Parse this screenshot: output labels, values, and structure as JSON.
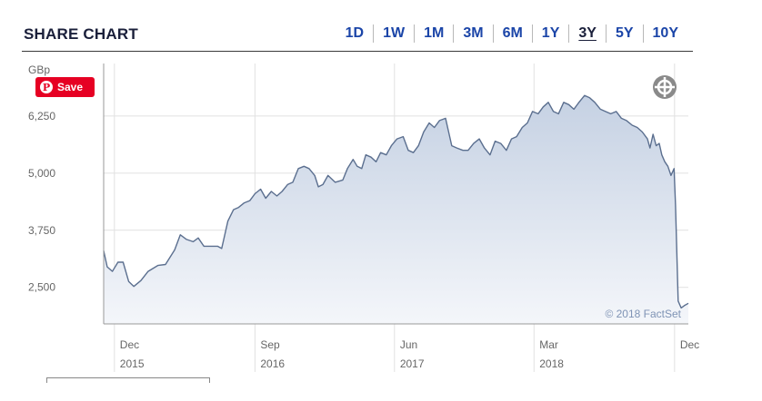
{
  "header": {
    "title": "SHARE CHART",
    "ranges": [
      "1D",
      "1W",
      "1M",
      "3M",
      "6M",
      "1Y",
      "3Y",
      "5Y",
      "10Y"
    ],
    "active_range": "3Y"
  },
  "save_button": {
    "label": "Save",
    "icon": "pinterest-icon"
  },
  "crosshair_icon": "crosshair-icon",
  "colors": {
    "line": "#5b6f8f",
    "fill_top": "#c5d1e3",
    "fill_bottom": "#f4f6fa",
    "grid": "#e1e1e1",
    "axis_text": "#666666",
    "accent": "#1b45a8",
    "pinterest": "#e60023"
  },
  "chart_data": {
    "type": "area",
    "ylabel": "GBp",
    "yticks": [
      2500,
      3750,
      5000,
      6250
    ],
    "ytick_labels": [
      "2,500",
      "3,750",
      "5,000",
      "6,250"
    ],
    "ylim": [
      1700,
      7400
    ],
    "xlim": [
      "2015-11-10",
      "2018-12-28"
    ],
    "xticks": [
      {
        "date": "2015-12-01",
        "month": "Dec",
        "year": "2015"
      },
      {
        "date": "2016-09-01",
        "month": "Sep",
        "year": "2016"
      },
      {
        "date": "2017-06-01",
        "month": "Jun",
        "year": "2017"
      },
      {
        "date": "2018-03-01",
        "month": "Mar",
        "year": "2018"
      },
      {
        "date": "2018-12-01",
        "month": "Dec",
        "year": ""
      }
    ],
    "grid": true,
    "credit": "© 2018 FactSet",
    "series": [
      {
        "points": [
          [
            "2015-11-10",
            3300
          ],
          [
            "2015-11-17",
            2950
          ],
          [
            "2015-11-27",
            2850
          ],
          [
            "2015-12-08",
            3050
          ],
          [
            "2015-12-18",
            3050
          ],
          [
            "2015-12-29",
            2630
          ],
          [
            "2016-01-08",
            2520
          ],
          [
            "2016-01-22",
            2650
          ],
          [
            "2016-02-05",
            2850
          ],
          [
            "2016-02-24",
            2980
          ],
          [
            "2016-03-10",
            3000
          ],
          [
            "2016-03-28",
            3320
          ],
          [
            "2016-04-08",
            3650
          ],
          [
            "2016-04-20",
            3550
          ],
          [
            "2016-05-03",
            3500
          ],
          [
            "2016-05-13",
            3580
          ],
          [
            "2016-05-24",
            3400
          ],
          [
            "2016-06-20",
            3400
          ],
          [
            "2016-06-28",
            3350
          ],
          [
            "2016-07-10",
            3950
          ],
          [
            "2016-07-21",
            4200
          ],
          [
            "2016-07-31",
            4250
          ],
          [
            "2016-08-11",
            4350
          ],
          [
            "2016-08-22",
            4400
          ],
          [
            "2016-09-01",
            4550
          ],
          [
            "2016-09-12",
            4650
          ],
          [
            "2016-09-22",
            4450
          ],
          [
            "2016-10-03",
            4600
          ],
          [
            "2016-10-14",
            4500
          ],
          [
            "2016-10-24",
            4600
          ],
          [
            "2016-11-04",
            4750
          ],
          [
            "2016-11-14",
            4800
          ],
          [
            "2016-11-25",
            5100
          ],
          [
            "2016-12-06",
            5150
          ],
          [
            "2016-12-16",
            5100
          ],
          [
            "2016-12-27",
            4950
          ],
          [
            "2017-01-03",
            4700
          ],
          [
            "2017-01-12",
            4750
          ],
          [
            "2017-01-22",
            4950
          ],
          [
            "2017-02-05",
            4800
          ],
          [
            "2017-02-20",
            4850
          ],
          [
            "2017-03-01",
            5100
          ],
          [
            "2017-03-12",
            5300
          ],
          [
            "2017-03-20",
            5150
          ],
          [
            "2017-03-29",
            5100
          ],
          [
            "2017-04-06",
            5400
          ],
          [
            "2017-04-16",
            5350
          ],
          [
            "2017-04-26",
            5250
          ],
          [
            "2017-05-05",
            5450
          ],
          [
            "2017-05-16",
            5400
          ],
          [
            "2017-05-26",
            5600
          ],
          [
            "2017-06-06",
            5750
          ],
          [
            "2017-06-18",
            5800
          ],
          [
            "2017-06-28",
            5500
          ],
          [
            "2017-07-08",
            5450
          ],
          [
            "2017-07-18",
            5600
          ],
          [
            "2017-07-28",
            5900
          ],
          [
            "2017-08-08",
            6100
          ],
          [
            "2017-08-18",
            6000
          ],
          [
            "2017-08-28",
            6150
          ],
          [
            "2017-09-09",
            6200
          ],
          [
            "2017-09-21",
            5600
          ],
          [
            "2017-10-01",
            5550
          ],
          [
            "2017-10-13",
            5500
          ],
          [
            "2017-10-23",
            5500
          ],
          [
            "2017-11-03",
            5650
          ],
          [
            "2017-11-14",
            5750
          ],
          [
            "2017-11-24",
            5550
          ],
          [
            "2017-12-05",
            5400
          ],
          [
            "2017-12-15",
            5700
          ],
          [
            "2017-12-26",
            5650
          ],
          [
            "2018-01-06",
            5500
          ],
          [
            "2018-01-16",
            5750
          ],
          [
            "2018-01-26",
            5800
          ],
          [
            "2018-02-06",
            6000
          ],
          [
            "2018-02-16",
            6100
          ],
          [
            "2018-02-26",
            6350
          ],
          [
            "2018-03-09",
            6300
          ],
          [
            "2018-03-19",
            6450
          ],
          [
            "2018-03-29",
            6550
          ],
          [
            "2018-04-08",
            6350
          ],
          [
            "2018-04-18",
            6300
          ],
          [
            "2018-04-28",
            6550
          ],
          [
            "2018-05-08",
            6500
          ],
          [
            "2018-05-18",
            6400
          ],
          [
            "2018-05-28",
            6550
          ],
          [
            "2018-06-08",
            6700
          ],
          [
            "2018-06-18",
            6650
          ],
          [
            "2018-06-28",
            6550
          ],
          [
            "2018-07-09",
            6400
          ],
          [
            "2018-07-19",
            6350
          ],
          [
            "2018-07-29",
            6300
          ],
          [
            "2018-08-09",
            6350
          ],
          [
            "2018-08-19",
            6200
          ],
          [
            "2018-08-29",
            6150
          ],
          [
            "2018-09-09",
            6050
          ],
          [
            "2018-09-19",
            6000
          ],
          [
            "2018-09-29",
            5900
          ],
          [
            "2018-10-09",
            5750
          ],
          [
            "2018-10-14",
            5550
          ],
          [
            "2018-10-20",
            5850
          ],
          [
            "2018-10-26",
            5600
          ],
          [
            "2018-11-01",
            5650
          ],
          [
            "2018-11-06",
            5400
          ],
          [
            "2018-11-12",
            5250
          ],
          [
            "2018-11-18",
            5150
          ],
          [
            "2018-11-24",
            4950
          ],
          [
            "2018-11-30",
            5100
          ],
          [
            "2018-12-03",
            4300
          ],
          [
            "2018-12-08",
            2200
          ],
          [
            "2018-12-14",
            2050
          ],
          [
            "2018-12-20",
            2100
          ],
          [
            "2018-12-28",
            2150
          ]
        ]
      }
    ]
  }
}
